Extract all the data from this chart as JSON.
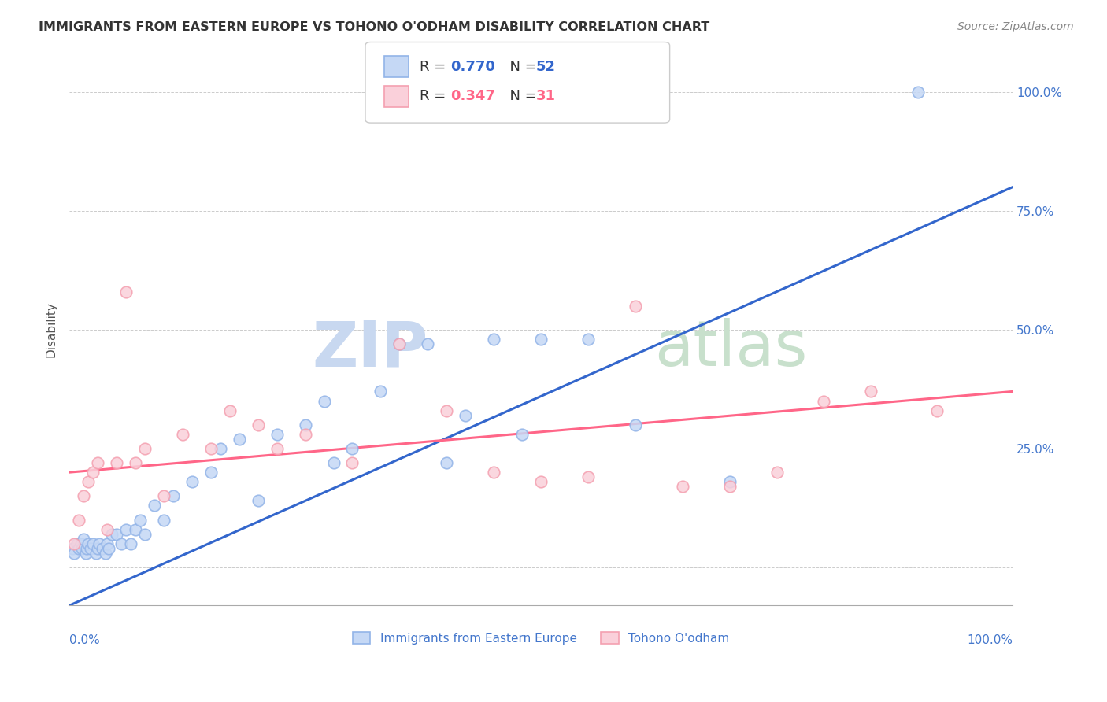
{
  "title": "IMMIGRANTS FROM EASTERN EUROPE VS TOHONO O'ODHAM DISABILITY CORRELATION CHART",
  "source": "Source: ZipAtlas.com",
  "ylabel": "Disability",
  "xlim": [
    0,
    100
  ],
  "ylim": [
    -8,
    108
  ],
  "legend_blue_r": "0.770",
  "legend_blue_n": "52",
  "legend_pink_r": "0.347",
  "legend_pink_n": "31",
  "legend_label_blue": "Immigrants from Eastern Europe",
  "legend_label_pink": "Tohono O'odham",
  "blue_color": "#92B4E8",
  "pink_color": "#F4A0B0",
  "blue_fill_color": "#C5D8F5",
  "pink_fill_color": "#FAD0DA",
  "line_blue_color": "#3366CC",
  "line_pink_color": "#FF6688",
  "text_dark": "#333333",
  "text_blue": "#3366CC",
  "text_pink": "#FF6688",
  "axis_label_color": "#4477CC",
  "grid_color": "#cccccc",
  "watermark_zip_color": "#C8D8F0",
  "watermark_atlas_color": "#C8E0CC",
  "blue_line_x0": 0,
  "blue_line_y0": -8,
  "blue_line_x1": 100,
  "blue_line_y1": 80,
  "pink_line_x0": 0,
  "pink_line_y0": 20,
  "pink_line_x1": 100,
  "pink_line_y1": 37,
  "blue_scatter_x": [
    0.3,
    0.5,
    0.8,
    1.0,
    1.2,
    1.3,
    1.5,
    1.7,
    1.8,
    2.0,
    2.2,
    2.5,
    2.8,
    3.0,
    3.2,
    3.5,
    3.8,
    4.0,
    4.2,
    4.5,
    5.0,
    5.5,
    6.0,
    6.5,
    7.0,
    7.5,
    8.0,
    9.0,
    10.0,
    11.0,
    13.0,
    15.0,
    16.0,
    18.0,
    20.0,
    22.0,
    25.0,
    27.0,
    28.0,
    30.0,
    33.0,
    35.0,
    38.0,
    40.0,
    42.0,
    45.0,
    48.0,
    50.0,
    55.0,
    60.0,
    70.0,
    90.0
  ],
  "blue_scatter_y": [
    4,
    3,
    5,
    4,
    5,
    4,
    6,
    3,
    4,
    5,
    4,
    5,
    3,
    4,
    5,
    4,
    3,
    5,
    4,
    7,
    7,
    5,
    8,
    5,
    8,
    10,
    7,
    13,
    10,
    15,
    18,
    20,
    25,
    27,
    14,
    28,
    30,
    35,
    22,
    25,
    37,
    47,
    47,
    22,
    32,
    48,
    28,
    48,
    48,
    30,
    18,
    100
  ],
  "pink_scatter_x": [
    0.5,
    1.0,
    1.5,
    2.0,
    2.5,
    3.0,
    4.0,
    5.0,
    6.0,
    7.0,
    8.0,
    10.0,
    12.0,
    15.0,
    17.0,
    20.0,
    22.0,
    25.0,
    30.0,
    35.0,
    40.0,
    45.0,
    50.0,
    55.0,
    60.0,
    65.0,
    70.0,
    75.0,
    80.0,
    85.0,
    92.0
  ],
  "pink_scatter_y": [
    5,
    10,
    15,
    18,
    20,
    22,
    8,
    22,
    58,
    22,
    25,
    15,
    28,
    25,
    33,
    30,
    25,
    28,
    22,
    47,
    33,
    20,
    18,
    19,
    55,
    17,
    17,
    20,
    35,
    37,
    33
  ]
}
